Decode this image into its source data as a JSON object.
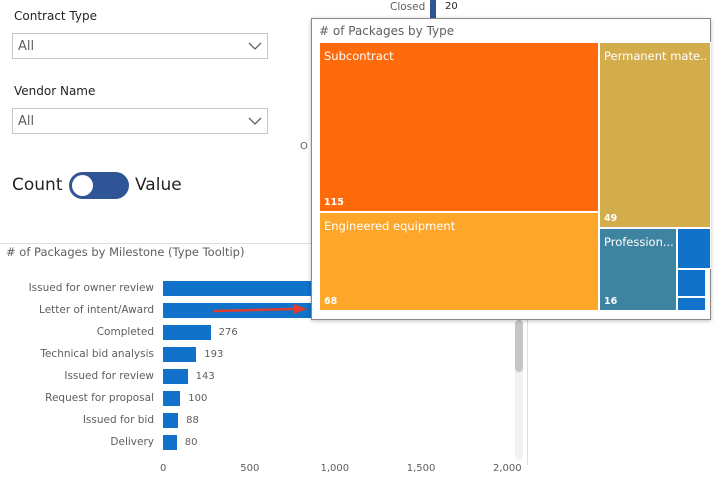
{
  "filters": {
    "contract_type": {
      "label": "Contract Type",
      "value": "All"
    },
    "vendor_name": {
      "label": "Vendor Name",
      "value": "All"
    }
  },
  "toggle": {
    "left_label": "Count",
    "right_label": "Value",
    "state": "Count"
  },
  "background": {
    "closed_label": "Closed",
    "closed_value": "20",
    "partial_label": "O"
  },
  "milestone_chart": {
    "title": "# of Packages by Milestone (Type Tooltip)",
    "chart_data": {
      "type": "bar",
      "orientation": "horizontal",
      "categories": [
        "Issued for owner review",
        "Letter of intent/Award",
        "Completed",
        "Technical bid analysis",
        "Issued for review",
        "Request for proposal",
        "Issued for bid",
        "Delivery"
      ],
      "values": [
        null,
        null,
        276,
        193,
        143,
        100,
        88,
        80
      ],
      "value_labels": [
        "",
        "",
        "276",
        "193",
        "143",
        "100",
        "88",
        "80"
      ],
      "xticks": [
        "0",
        "500",
        "1,000",
        "1,500",
        "2,000"
      ],
      "xlim": [
        0,
        2100
      ],
      "colors": {
        "bar": "#1072c9"
      }
    }
  },
  "tooltip": {
    "title": "# of Packages by Type",
    "chart_data": {
      "type": "treemap",
      "items": [
        {
          "name": "Subcontract",
          "value": "115",
          "color": "#ff6a0c"
        },
        {
          "name": "Engineered equipment",
          "value": "68",
          "color": "#fda62a"
        },
        {
          "name": "Permanent mate...",
          "value": "49",
          "color": "#d3ac4b"
        },
        {
          "name": "Profession...",
          "value": "16",
          "color": "#3e84a0"
        },
        {
          "name": "",
          "value": "",
          "color": "#1072c9"
        },
        {
          "name": "",
          "value": "",
          "color": "#1072c9"
        },
        {
          "name": "",
          "value": "",
          "color": "#1072c9"
        }
      ]
    }
  }
}
